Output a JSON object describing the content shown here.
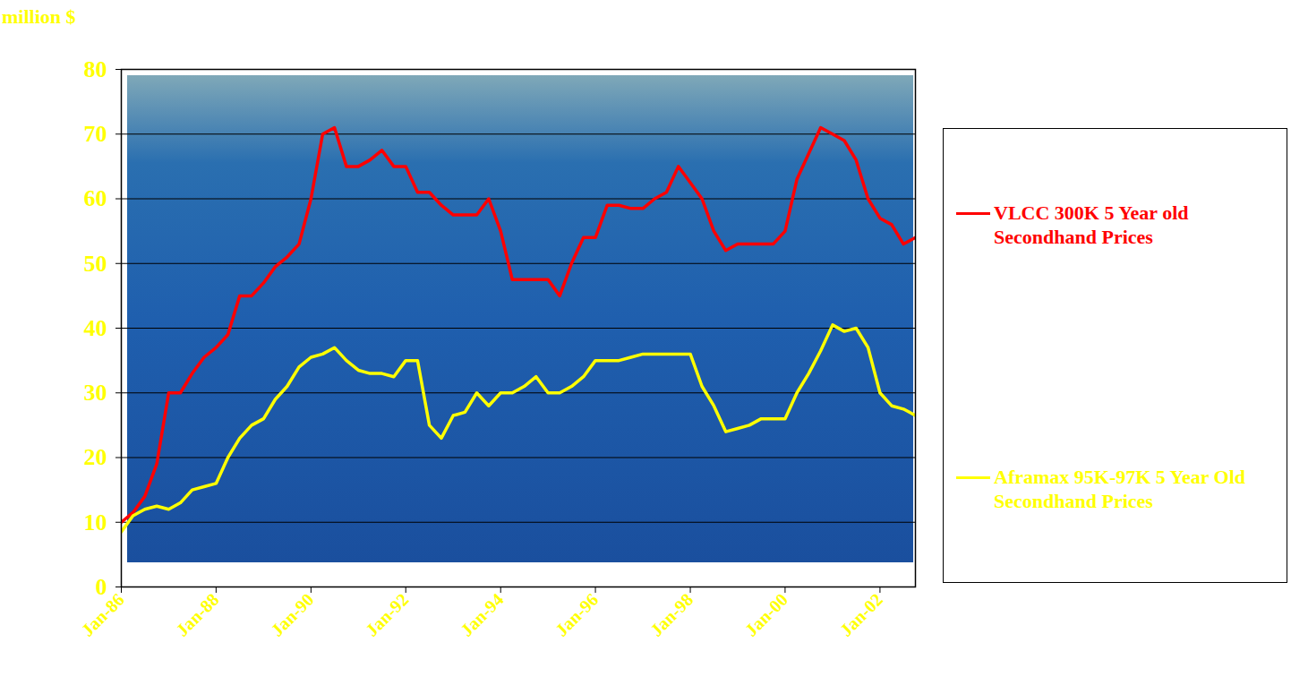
{
  "chart_data": {
    "type": "line",
    "ylabel": "million $",
    "x": [
      "1986-01",
      "1986-04",
      "1986-07",
      "1986-10",
      "1987-01",
      "1987-04",
      "1987-07",
      "1987-10",
      "1988-01",
      "1988-04",
      "1988-07",
      "1988-10",
      "1989-01",
      "1989-04",
      "1989-07",
      "1989-10",
      "1990-01",
      "1990-04",
      "1990-07",
      "1990-10",
      "1991-01",
      "1991-04",
      "1991-07",
      "1991-10",
      "1992-01",
      "1992-04",
      "1992-07",
      "1992-10",
      "1993-01",
      "1993-04",
      "1993-07",
      "1993-10",
      "1994-01",
      "1994-04",
      "1994-07",
      "1994-10",
      "1995-01",
      "1995-04",
      "1995-07",
      "1995-10",
      "1996-01",
      "1996-04",
      "1996-07",
      "1996-10",
      "1997-01",
      "1997-04",
      "1997-07",
      "1997-10",
      "1998-01",
      "1998-04",
      "1998-07",
      "1998-10",
      "1999-01",
      "1999-04",
      "1999-07",
      "1999-10",
      "2000-01",
      "2000-04",
      "2000-07",
      "2000-10",
      "2001-01",
      "2001-04",
      "2001-07",
      "2001-10",
      "2002-01",
      "2002-04",
      "2002-07",
      "2002-10"
    ],
    "series": [
      {
        "name": "VLCC 300K 5 Year old Secondhand Prices",
        "color": "#FF0000",
        "values": [
          10,
          11.5,
          14,
          19,
          30,
          30,
          33,
          35.5,
          37,
          39,
          45,
          45,
          47,
          49.5,
          51,
          53,
          60,
          70,
          71,
          65,
          65,
          66,
          67.5,
          65,
          65,
          61,
          61,
          59,
          57.5,
          57.5,
          57.5,
          60,
          55,
          47.5,
          47.5,
          47.5,
          47.5,
          45,
          50,
          54,
          54,
          59,
          59,
          58.5,
          58.5,
          60,
          61,
          65,
          62.5,
          60,
          55,
          52,
          53,
          53,
          53,
          53,
          55,
          63,
          67,
          71,
          70,
          69,
          66,
          60,
          57,
          56,
          53,
          54
        ]
      },
      {
        "name": "Aframax 95K-97K 5 Year Old Secondhand Prices",
        "color": "#FFFF00",
        "values": [
          8.5,
          11,
          12,
          12.5,
          12,
          13,
          15,
          15.5,
          16,
          20,
          23,
          25,
          26,
          29,
          31,
          34,
          35.5,
          36,
          37,
          35,
          33.5,
          33,
          33,
          32.5,
          35,
          35,
          25,
          23,
          26.5,
          27,
          30,
          28,
          30,
          30,
          31,
          32.5,
          30,
          30,
          31,
          32.5,
          35,
          35,
          35,
          35.5,
          36,
          36,
          36,
          36,
          36,
          31,
          28,
          24,
          24.5,
          25,
          26,
          26,
          26,
          30,
          33,
          36.5,
          40.5,
          39.5,
          40,
          37,
          30,
          28,
          27.5,
          26.5
        ]
      }
    ],
    "xlim": [
      "1986-01",
      "2002-10"
    ],
    "xticks": [
      {
        "value": "1986-01",
        "label": "Jan-86"
      },
      {
        "value": "1988-01",
        "label": "Jan-88"
      },
      {
        "value": "1990-01",
        "label": "Jan-90"
      },
      {
        "value": "1992-01",
        "label": "Jan-92"
      },
      {
        "value": "1994-01",
        "label": "Jan-94"
      },
      {
        "value": "1996-01",
        "label": "Jan-96"
      },
      {
        "value": "1998-01",
        "label": "Jan-98"
      },
      {
        "value": "2000-01",
        "label": "Jan-00"
      },
      {
        "value": "2002-01",
        "label": "Jan-02"
      }
    ],
    "ylim": [
      0,
      80
    ],
    "yticks": [
      0,
      10,
      20,
      30,
      40,
      50,
      60,
      70,
      80
    ],
    "grid": true,
    "legend": "right"
  }
}
